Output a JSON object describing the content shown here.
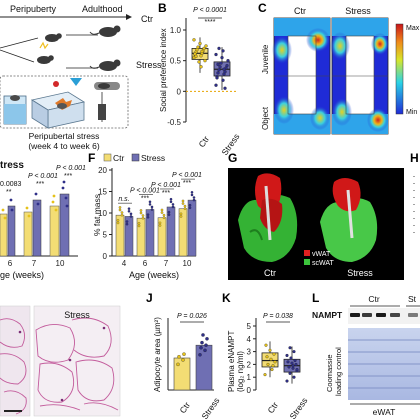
{
  "panel_letters": {
    "B": "B",
    "C": "C",
    "F": "F",
    "G": "G",
    "H": "H",
    "J": "J",
    "K": "K",
    "L": "L"
  },
  "panel_a": {
    "peripuberty": "Peripuberty",
    "adulthood": "Adulthood",
    "ctr": "Ctr",
    "stress": "Stress",
    "caption_line1": "Peripubertal stress",
    "caption_line2": "(week 4 to week 6)"
  },
  "panel_e_partial": {
    "title_fragment": "tress",
    "pvals": [
      "0.0083",
      "P < 0.001",
      "P < 0.001"
    ],
    "x_ticks": [
      "6",
      "7",
      "10"
    ],
    "xlabel_fragment": "ge (weeks)",
    "significance": [
      "**",
      "***",
      "***"
    ]
  },
  "panel_i_partial": {
    "stress_label": "Stress"
  },
  "panel_g": {
    "ctr": "Ctr",
    "stress": "Stress",
    "legend": [
      "vWAT",
      "scWAT"
    ],
    "legend_colors": [
      "#e02020",
      "#3cc43c"
    ]
  },
  "panel_c": {
    "col_labels": [
      "Ctr",
      "Stress"
    ],
    "row_labels": [
      "Juvenile",
      "Object"
    ],
    "scale_max": "Max",
    "scale_min": "Min"
  },
  "panel_l": {
    "protein": "NAMPT",
    "group_ctr": "Ctr",
    "group_stress_fragment": "St",
    "loading_label_1": "Coomassie",
    "loading_label_2": "loading control",
    "tissue": "eWAT"
  },
  "colors": {
    "ctr": "#f3dd74",
    "stress": "#6f6fb3",
    "ctr_dot": "#e6c21b",
    "stress_dot": "#2f2f88"
  },
  "chart_data": [
    {
      "panel": "B",
      "type": "box",
      "categories": [
        "Ctr",
        "Stress"
      ],
      "ylabel": "Social preference index",
      "ylim": [
        -0.5,
        1.0
      ],
      "yticks": [
        "-0.5",
        "0",
        "0.5",
        "1.0"
      ],
      "yticks_values": [
        -0.5,
        0,
        0.5,
        1.0
      ],
      "pvalue": "P < 0.0001",
      "significance": "****",
      "reference_line": 0,
      "boxes": [
        {
          "q1": 0.52,
          "median": 0.62,
          "q3": 0.7,
          "wlo": 0.3,
          "whi": 0.88
        },
        {
          "q1": 0.25,
          "median": 0.36,
          "q3": 0.48,
          "wlo": 0.02,
          "whi": 0.72
        }
      ],
      "points": [
        [
          0.55,
          0.58,
          0.6,
          0.62,
          0.64,
          0.66,
          0.68,
          0.7,
          0.72,
          0.5,
          0.48,
          0.74,
          0.78,
          0.84,
          0.4,
          0.61,
          0.65,
          0.57
        ],
        [
          0.1,
          0.18,
          0.24,
          0.28,
          0.3,
          0.32,
          0.35,
          0.38,
          0.4,
          0.42,
          0.46,
          0.5,
          0.55,
          0.6,
          0.66,
          0.22,
          0.36,
          0.44,
          0.05,
          0.7
        ]
      ]
    },
    {
      "panel": "F",
      "type": "bar",
      "ylabel": "% fat mass",
      "xlabel": "Age (weeks)",
      "categories": [
        "4",
        "6",
        "7",
        "10"
      ],
      "ylim": [
        0,
        20
      ],
      "yticks": [
        "0",
        "5",
        "10",
        "15",
        "20"
      ],
      "yticks_values": [
        0,
        5,
        10,
        15,
        20
      ],
      "legend": [
        "Ctr",
        "Stress"
      ],
      "series": [
        {
          "name": "Ctr",
          "values": [
            9.5,
            8.8,
            8.9,
            11.0
          ]
        },
        {
          "name": "Stress",
          "values": [
            9.2,
            10.8,
            11.4,
            13.0
          ]
        }
      ],
      "annotations": [
        {
          "category": "4",
          "text": "n.s."
        },
        {
          "category": "6",
          "text": "P < 0.001",
          "stars": "***"
        },
        {
          "category": "7",
          "text": "P < 0.001",
          "stars": "***"
        },
        {
          "category": "10",
          "text": "P < 0.001",
          "stars": "***"
        }
      ]
    },
    {
      "panel": "J",
      "type": "bar",
      "ylabel": "Adipocyte area (µm²)",
      "categories": [
        "Ctr",
        "Stress"
      ],
      "values": [
        0.5,
        0.7
      ],
      "pvalue": "P = 0.026",
      "points": [
        [
          0.4,
          0.47,
          0.52,
          0.56
        ],
        [
          0.55,
          0.62,
          0.66,
          0.7,
          0.74,
          0.8,
          0.86
        ]
      ]
    },
    {
      "panel": "K",
      "type": "box",
      "ylabel_line1": "Plasma eNAMPT",
      "ylabel_line2": "(log₂ ng/ml)",
      "categories": [
        "Ctr",
        "Stress"
      ],
      "pvalue": "P = 0.038",
      "ylim": [
        0,
        5
      ],
      "yticks": [
        "0",
        "1",
        "2",
        "3",
        "4",
        "5"
      ],
      "yticks_values": [
        0,
        1,
        2,
        3,
        4,
        5
      ],
      "boxes": [
        {
          "q1": 1.8,
          "median": 2.3,
          "q3": 2.9,
          "wlo": 1.0,
          "whi": 3.8
        },
        {
          "q1": 1.4,
          "median": 1.9,
          "q3": 2.4,
          "wlo": 0.5,
          "whi": 3.4
        }
      ],
      "points": [
        [
          1.2,
          1.6,
          2.0,
          2.2,
          2.4,
          2.6,
          2.8,
          3.1,
          3.5,
          1.9
        ],
        [
          0.7,
          1.0,
          1.3,
          1.5,
          1.7,
          1.8,
          2.0,
          2.1,
          2.2,
          2.3,
          2.5,
          2.7,
          3.0,
          3.3,
          1.6,
          1.9
        ]
      ]
    }
  ]
}
